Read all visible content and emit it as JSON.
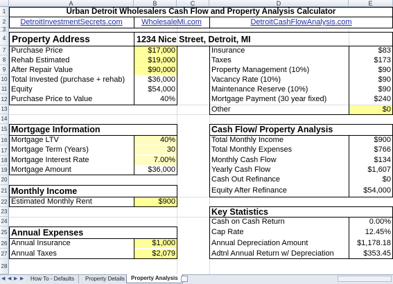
{
  "columns": [
    "A",
    "B",
    "C",
    "D",
    "E"
  ],
  "rows": [
    "1",
    "2",
    "3",
    "4",
    "7",
    "8",
    "9",
    "10",
    "11",
    "12",
    "13",
    "14",
    "15",
    "16",
    "17",
    "18",
    "19",
    "20",
    "21",
    "22",
    "23",
    "24",
    "25",
    "26",
    "27",
    "28"
  ],
  "title": "Urban Detroit Wholesalers Cash Flow and Property Analysis Calculator",
  "links": [
    "DetroitInvestmentSecrets.com",
    "WholesaleMi.com",
    "DetroitCashFlowAnalysis.com"
  ],
  "property": {
    "label": "Property Address",
    "address": "1234 Nice Street, Detroit, MI"
  },
  "left_top": [
    {
      "label": "Purchase Price",
      "value": "$17,000"
    },
    {
      "label": "Rehab Estimated",
      "value": "$19,000"
    },
    {
      "label": "After Repair Value",
      "value": "$90,000"
    },
    {
      "label": "Total Invested (purchase + rehab)",
      "value": "$36,000"
    },
    {
      "label": "Equity",
      "value": "$54,000"
    },
    {
      "label": "Purchase Price to Value",
      "value": "40%"
    }
  ],
  "right_top": [
    {
      "label": "Insurance",
      "value": "$83"
    },
    {
      "label": "Taxes",
      "value": "$173"
    },
    {
      "label": "Property Management (10%)",
      "value": "$90"
    },
    {
      "label": "Vacancy Rate (10%)",
      "value": "$90"
    },
    {
      "label": "Maintenance Reserve (10%)",
      "value": "$90"
    },
    {
      "label": "Mortgage Payment (30 year fixed)",
      "value": "$240"
    },
    {
      "label": "Other",
      "value": "$0"
    }
  ],
  "mortgage": {
    "heading": "Mortgage Information",
    "items": [
      {
        "label": "Mortgage LTV",
        "value": "40%"
      },
      {
        "label": "Mortgage Term (Years)",
        "value": "30"
      },
      {
        "label": "Mortgage Interest Rate",
        "value": "7.00%"
      },
      {
        "label": "Mortgage Amount",
        "value": "$36,000"
      }
    ]
  },
  "income": {
    "heading": "Monthly Income",
    "label": "Estimated Monthly Rent",
    "value": "$900"
  },
  "expenses": {
    "heading": "Annual Expenses",
    "items": [
      {
        "label": "Annual Insurance",
        "value": "$1,000"
      },
      {
        "label": "Annual Taxes",
        "value": "$2,079"
      }
    ]
  },
  "cashflow": {
    "heading": "Cash Flow/ Property Analysis",
    "items": [
      {
        "label": "Total Monthly Income",
        "value": "$900"
      },
      {
        "label": "Total Monthly Expenses",
        "value": "$766"
      },
      {
        "label": "Monthly Cash Flow",
        "value": "$134"
      },
      {
        "label": "Yearly Cash Flow",
        "value": "$1,607"
      },
      {
        "label": "Cash Out Refinance",
        "value": "$0"
      },
      {
        "label": "Equity After Refinance",
        "value": "$54,000"
      }
    ]
  },
  "stats": {
    "heading": "Key Statistics",
    "items": [
      {
        "label": "Cash on Cash Return",
        "value": "0.00%"
      },
      {
        "label": "Cap Rate",
        "value": "12.45%"
      },
      {
        "label": "Annual Depreciation Amount",
        "value": "$1,178.18"
      },
      {
        "label": "Adtnl Annual Return w/ Depreciation",
        "value": "$353.45"
      }
    ]
  },
  "tabs": [
    "How To - Defaults",
    "Property Details",
    "Property Analysis"
  ]
}
